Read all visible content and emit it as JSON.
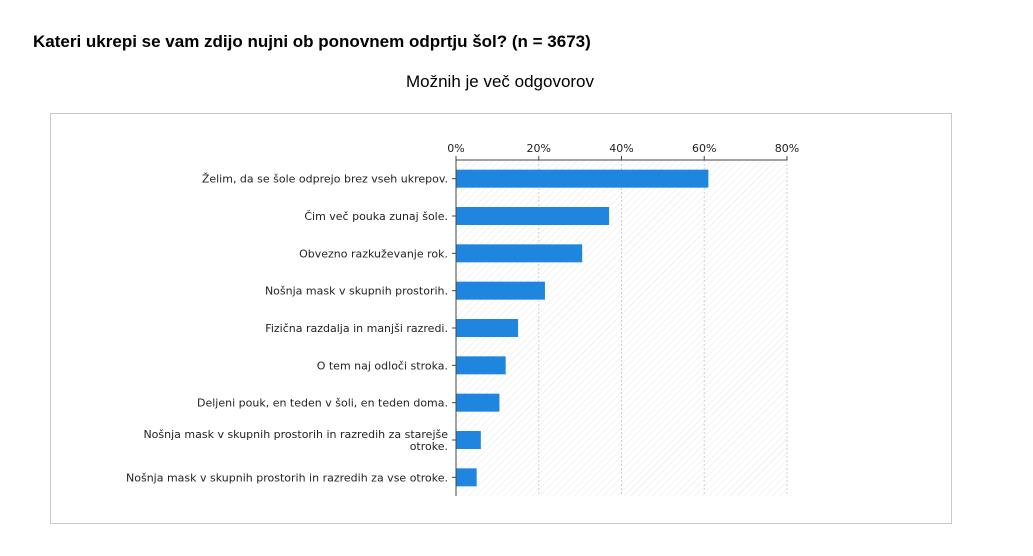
{
  "header": {
    "title": "Kateri ukrepi se vam zdijo nujni ob ponovnem odprtju šol? (n = 3673)",
    "subtitle": "Možnih je več odgovorov"
  },
  "chart_data": {
    "type": "bar",
    "orientation": "horizontal",
    "title": "Kateri ukrepi se vam zdijo nujni ob ponovnem odprtju šol? (n = 3673)",
    "subtitle": "Možnih je več odgovorov",
    "xlabel": "",
    "ylabel": "",
    "xlim": [
      0,
      80
    ],
    "ticks": [
      0,
      20,
      40,
      60,
      80
    ],
    "tick_labels": [
      "0%",
      "20%",
      "40%",
      "60%",
      "80%"
    ],
    "categories": [
      "Želim, da se šole odprejo brez vseh ukrepov.",
      "Čim več pouka zunaj šole.",
      "Obvezno razkuževanje rok.",
      "Nošnja mask v skupnih prostorih.",
      "Fizična razdalja in manjši razredi.",
      "O tem naj odloči stroka.",
      "Deljeni pouk, en teden v šoli, en teden doma.",
      "Nošnja mask v skupnih prostorih in razredih za starejše otroke.",
      "Nošnja mask v skupnih prostorih in razredih za vse otroke."
    ],
    "values": [
      61,
      37,
      30.5,
      21.5,
      15,
      12,
      10.5,
      6,
      5
    ],
    "bar_color": "#1f86e0",
    "grid": true
  }
}
